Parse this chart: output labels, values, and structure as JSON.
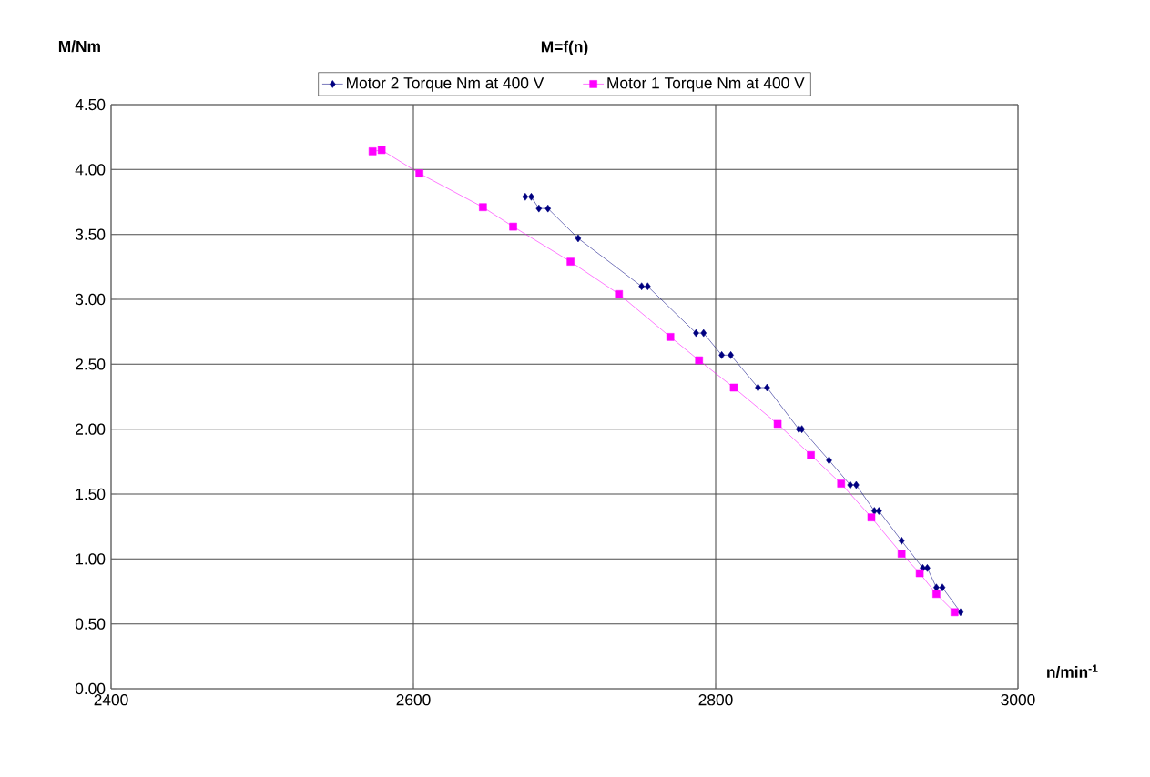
{
  "chart_data": {
    "type": "line",
    "title": "M=f(n)",
    "xlabel": "n/min$^{-1}$",
    "ylabel": "M/Nm",
    "xlim": [
      2400,
      3000
    ],
    "xticks": [
      2400,
      2600,
      2800,
      3000
    ],
    "ylim": [
      0,
      4.5
    ],
    "yticks": [
      {
        "value": 0,
        "label": "0.00"
      },
      {
        "value": 0.5,
        "label": "0.50"
      },
      {
        "value": 1,
        "label": "1.00"
      },
      {
        "value": 1.5,
        "label": "1.50"
      },
      {
        "value": 2,
        "label": "2.00"
      },
      {
        "value": 2.5,
        "label": "2.50"
      },
      {
        "value": 3,
        "label": "3.00"
      },
      {
        "value": 3.5,
        "label": "3.50"
      },
      {
        "value": 4,
        "label": "4.00"
      },
      {
        "value": 4.5,
        "label": "4.50"
      }
    ],
    "grid": true,
    "legend": "top",
    "series": [
      {
        "name": "Motor 2 Torque Nm at 400 V",
        "color": "#000080",
        "marker": "diamond",
        "x": [
          2674,
          2678,
          2683,
          2689,
          2709,
          2751,
          2755,
          2787,
          2792,
          2804,
          2810,
          2828,
          2834,
          2855,
          2857,
          2875,
          2889,
          2893,
          2905,
          2908,
          2923,
          2937,
          2940,
          2946,
          2950,
          2962
        ],
        "values": [
          3.79,
          3.79,
          3.7,
          3.7,
          3.47,
          3.1,
          3.1,
          2.74,
          2.74,
          2.57,
          2.57,
          2.32,
          2.32,
          2.0,
          2.0,
          1.76,
          1.57,
          1.57,
          1.37,
          1.37,
          1.14,
          0.93,
          0.93,
          0.78,
          0.78,
          0.59
        ]
      },
      {
        "name": "Motor 1 Torque Nm at 400 V",
        "color": "#ff00ff",
        "marker": "square",
        "x": [
          2573,
          2579,
          2604,
          2646,
          2666,
          2704,
          2736,
          2770,
          2789,
          2812,
          2841,
          2863,
          2883,
          2903,
          2923,
          2935,
          2946,
          2958
        ],
        "values": [
          4.14,
          4.15,
          3.97,
          3.71,
          3.56,
          3.29,
          3.04,
          2.71,
          2.53,
          2.32,
          2.04,
          1.8,
          1.58,
          1.32,
          1.04,
          0.89,
          0.73,
          0.59
        ]
      }
    ]
  }
}
